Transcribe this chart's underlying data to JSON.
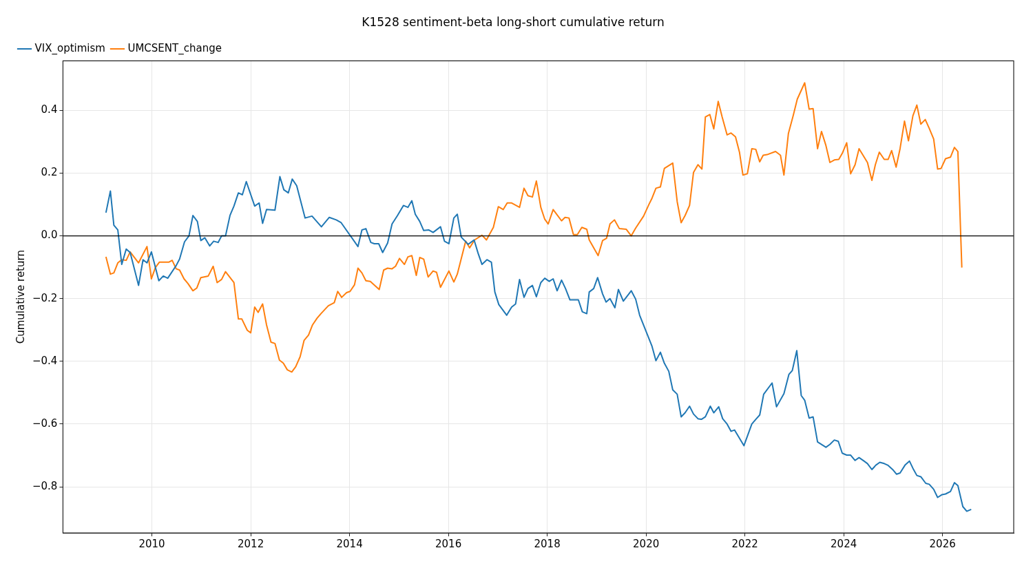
{
  "chart_data": {
    "type": "line",
    "title": "K1528 sentiment-beta long-short cumulative return",
    "ylabel": "Cumulative return",
    "xlim": [
      2008.2,
      2027.44
    ],
    "ylim": [
      -0.947,
      0.558
    ],
    "xticks": [
      2010,
      2012,
      2014,
      2016,
      2018,
      2020,
      2022,
      2024,
      2026
    ],
    "yticks": [
      {
        "value": -0.8,
        "label": "−0.8"
      },
      {
        "value": -0.6,
        "label": "−0.6"
      },
      {
        "value": -0.4,
        "label": "−0.4"
      },
      {
        "value": -0.2,
        "label": "−0.2"
      },
      {
        "value": 0,
        "label": "0.0"
      },
      {
        "value": 0.2,
        "label": "0.2"
      },
      {
        "value": 0.4,
        "label": "0.4"
      }
    ],
    "grid": true,
    "legend": "top left",
    "line_style": "solid",
    "ref_lines": [
      {
        "axis": "y",
        "value": 0,
        "color": "#000000"
      }
    ],
    "series": [
      {
        "name": "VIX_optimism",
        "color": "#1f77b4",
        "x": [
          2009.07,
          2009.16,
          2009.23,
          2009.31,
          2009.39,
          2009.48,
          2009.56,
          2009.73,
          2009.82,
          2009.9,
          2009.99,
          2010.14,
          2010.23,
          2010.32,
          2010.49,
          2010.56,
          2010.66,
          2010.75,
          2010.83,
          2010.92,
          2010.99,
          2011.07,
          2011.17,
          2011.25,
          2011.34,
          2011.41,
          2011.49,
          2011.58,
          2011.66,
          2011.75,
          2011.83,
          2011.91,
          2012.08,
          2012.17,
          2012.24,
          2012.32,
          2012.49,
          2012.59,
          2012.67,
          2012.76,
          2012.84,
          2012.93,
          2013.1,
          2013.24,
          2013.43,
          2013.59,
          2013.73,
          2013.83,
          2014.17,
          2014.25,
          2014.33,
          2014.43,
          2014.5,
          2014.59,
          2014.67,
          2014.77,
          2014.86,
          2014.97,
          2015.09,
          2015.18,
          2015.26,
          2015.33,
          2015.42,
          2015.5,
          2015.6,
          2015.69,
          2015.84,
          2015.92,
          2016.01,
          2016.11,
          2016.18,
          2016.26,
          2016.4,
          2016.52,
          2016.6,
          2016.68,
          2016.78,
          2016.87,
          2016.94,
          2017.02,
          2017.18,
          2017.28,
          2017.36,
          2017.44,
          2017.53,
          2017.61,
          2017.7,
          2017.78,
          2017.87,
          2017.95,
          2018.04,
          2018.12,
          2018.2,
          2018.29,
          2018.37,
          2018.46,
          2018.63,
          2018.71,
          2018.8,
          2018.85,
          2018.94,
          2019.02,
          2019.12,
          2019.19,
          2019.27,
          2019.37,
          2019.44,
          2019.54,
          2019.7,
          2019.79,
          2019.87,
          2020.12,
          2020.2,
          2020.29,
          2020.37,
          2020.46,
          2020.54,
          2020.63,
          2020.71,
          2020.79,
          2020.88,
          2020.96,
          2021.05,
          2021.12,
          2021.2,
          2021.3,
          2021.37,
          2021.47,
          2021.55,
          2021.64,
          2021.72,
          2021.79,
          2021.98,
          2022.14,
          2022.22,
          2022.3,
          2022.38,
          2022.55,
          2022.64,
          2022.79,
          2022.89,
          2022.96,
          2023.05,
          2023.14,
          2023.21,
          2023.3,
          2023.38,
          2023.47,
          2023.64,
          2023.72,
          2023.81,
          2023.89,
          2023.97,
          2024.06,
          2024.14,
          2024.23,
          2024.31,
          2024.41,
          2024.48,
          2024.57,
          2024.65,
          2024.73,
          2024.82,
          2024.89,
          2024.99,
          2025.07,
          2025.14,
          2025.24,
          2025.33,
          2025.4,
          2025.48,
          2025.56,
          2025.66,
          2025.73,
          2025.82,
          2025.9,
          2025.99,
          2026.06,
          2026.16,
          2026.24,
          2026.31,
          2026.41,
          2026.49,
          2026.58
        ],
        "values": [
          0.074,
          0.143,
          0.034,
          0.019,
          -0.091,
          -0.042,
          -0.053,
          -0.158,
          -0.076,
          -0.086,
          -0.051,
          -0.143,
          -0.128,
          -0.135,
          -0.095,
          -0.074,
          -0.019,
          0.0,
          0.065,
          0.046,
          -0.015,
          -0.006,
          -0.032,
          -0.017,
          -0.021,
          0.0,
          0.0,
          0.065,
          0.095,
          0.137,
          0.131,
          0.173,
          0.095,
          0.105,
          0.04,
          0.084,
          0.082,
          0.189,
          0.147,
          0.137,
          0.181,
          0.16,
          0.057,
          0.063,
          0.029,
          0.059,
          0.051,
          0.042,
          -0.034,
          0.019,
          0.023,
          -0.021,
          -0.025,
          -0.025,
          -0.053,
          -0.023,
          0.038,
          0.065,
          0.097,
          0.091,
          0.112,
          0.069,
          0.046,
          0.017,
          0.019,
          0.011,
          0.029,
          -0.017,
          -0.025,
          0.057,
          0.069,
          -0.004,
          -0.027,
          -0.013,
          -0.055,
          -0.091,
          -0.076,
          -0.084,
          -0.179,
          -0.219,
          -0.253,
          -0.227,
          -0.217,
          -0.139,
          -0.196,
          -0.168,
          -0.158,
          -0.194,
          -0.149,
          -0.135,
          -0.145,
          -0.137,
          -0.175,
          -0.141,
          -0.168,
          -0.204,
          -0.204,
          -0.242,
          -0.248,
          -0.179,
          -0.168,
          -0.133,
          -0.185,
          -0.211,
          -0.2,
          -0.229,
          -0.171,
          -0.208,
          -0.175,
          -0.202,
          -0.253,
          -0.352,
          -0.398,
          -0.371,
          -0.406,
          -0.432,
          -0.491,
          -0.505,
          -0.577,
          -0.564,
          -0.543,
          -0.568,
          -0.583,
          -0.585,
          -0.577,
          -0.543,
          -0.564,
          -0.545,
          -0.583,
          -0.6,
          -0.623,
          -0.619,
          -0.669,
          -0.6,
          -0.585,
          -0.571,
          -0.505,
          -0.469,
          -0.545,
          -0.503,
          -0.442,
          -0.429,
          -0.366,
          -0.509,
          -0.524,
          -0.581,
          -0.577,
          -0.657,
          -0.674,
          -0.665,
          -0.651,
          -0.655,
          -0.693,
          -0.699,
          -0.699,
          -0.716,
          -0.707,
          -0.718,
          -0.726,
          -0.745,
          -0.731,
          -0.722,
          -0.726,
          -0.731,
          -0.745,
          -0.76,
          -0.756,
          -0.731,
          -0.718,
          -0.741,
          -0.764,
          -0.768,
          -0.789,
          -0.792,
          -0.808,
          -0.834,
          -0.825,
          -0.823,
          -0.815,
          -0.787,
          -0.796,
          -0.863,
          -0.878,
          -0.872
        ]
      },
      {
        "name": "UMCSENT_change",
        "color": "#ff7f0e",
        "x": [
          2009.07,
          2009.16,
          2009.23,
          2009.31,
          2009.39,
          2009.48,
          2009.56,
          2009.73,
          2009.9,
          2009.99,
          2010.07,
          2010.15,
          2010.34,
          2010.41,
          2010.49,
          2010.56,
          2010.65,
          2010.73,
          2010.83,
          2010.91,
          2010.99,
          2011.14,
          2011.24,
          2011.32,
          2011.41,
          2011.49,
          2011.66,
          2011.75,
          2011.82,
          2011.93,
          2012.0,
          2012.08,
          2012.15,
          2012.24,
          2012.32,
          2012.41,
          2012.49,
          2012.58,
          2012.66,
          2012.74,
          2012.83,
          2012.91,
          2013.0,
          2013.08,
          2013.17,
          2013.25,
          2013.34,
          2013.42,
          2013.57,
          2013.69,
          2013.76,
          2013.84,
          2013.94,
          2014.01,
          2014.1,
          2014.17,
          2014.25,
          2014.33,
          2014.42,
          2014.6,
          2014.69,
          2014.77,
          2014.86,
          2014.93,
          2015.01,
          2015.11,
          2015.18,
          2015.26,
          2015.35,
          2015.42,
          2015.5,
          2015.59,
          2015.69,
          2015.76,
          2015.84,
          2016.01,
          2016.11,
          2016.18,
          2016.35,
          2016.43,
          2016.53,
          2016.68,
          2016.77,
          2016.91,
          2017.01,
          2017.11,
          2017.19,
          2017.28,
          2017.44,
          2017.53,
          2017.61,
          2017.7,
          2017.78,
          2017.87,
          2017.95,
          2018.02,
          2018.12,
          2018.19,
          2018.29,
          2018.36,
          2018.44,
          2018.53,
          2018.61,
          2018.7,
          2018.8,
          2018.85,
          2019.03,
          2019.12,
          2019.2,
          2019.27,
          2019.36,
          2019.46,
          2019.6,
          2019.7,
          2019.79,
          2019.95,
          2020.06,
          2020.12,
          2020.2,
          2020.29,
          2020.37,
          2020.54,
          2020.63,
          2020.71,
          2020.79,
          2020.88,
          2020.96,
          2021.05,
          2021.13,
          2021.2,
          2021.29,
          2021.37,
          2021.46,
          2021.54,
          2021.64,
          2021.72,
          2021.81,
          2021.89,
          2021.96,
          2022.05,
          2022.14,
          2022.22,
          2022.3,
          2022.37,
          2022.45,
          2022.62,
          2022.72,
          2022.79,
          2022.88,
          2022.98,
          2023.06,
          2023.21,
          2023.3,
          2023.38,
          2023.47,
          2023.55,
          2023.64,
          2023.72,
          2023.81,
          2023.9,
          2023.97,
          2024.06,
          2024.14,
          2024.23,
          2024.31,
          2024.48,
          2024.57,
          2024.64,
          2024.72,
          2024.82,
          2024.9,
          2024.97,
          2025.06,
          2025.14,
          2025.23,
          2025.31,
          2025.4,
          2025.48,
          2025.56,
          2025.65,
          2025.73,
          2025.82,
          2025.9,
          2025.97,
          2026.06,
          2026.16,
          2026.24,
          2026.31,
          2026.39
        ],
        "values": [
          -0.067,
          -0.122,
          -0.118,
          -0.086,
          -0.076,
          -0.078,
          -0.051,
          -0.086,
          -0.034,
          -0.137,
          -0.101,
          -0.084,
          -0.084,
          -0.078,
          -0.105,
          -0.109,
          -0.137,
          -0.152,
          -0.175,
          -0.166,
          -0.133,
          -0.128,
          -0.097,
          -0.149,
          -0.139,
          -0.114,
          -0.149,
          -0.265,
          -0.265,
          -0.301,
          -0.309,
          -0.227,
          -0.244,
          -0.217,
          -0.284,
          -0.339,
          -0.343,
          -0.396,
          -0.406,
          -0.427,
          -0.434,
          -0.417,
          -0.385,
          -0.333,
          -0.316,
          -0.284,
          -0.263,
          -0.248,
          -0.223,
          -0.213,
          -0.177,
          -0.196,
          -0.181,
          -0.177,
          -0.156,
          -0.103,
          -0.118,
          -0.143,
          -0.145,
          -0.171,
          -0.109,
          -0.103,
          -0.105,
          -0.097,
          -0.072,
          -0.091,
          -0.067,
          -0.063,
          -0.126,
          -0.069,
          -0.074,
          -0.131,
          -0.112,
          -0.116,
          -0.164,
          -0.112,
          -0.147,
          -0.122,
          -0.017,
          -0.038,
          -0.013,
          0.002,
          -0.013,
          0.027,
          0.093,
          0.084,
          0.105,
          0.105,
          0.091,
          0.152,
          0.128,
          0.124,
          0.175,
          0.091,
          0.053,
          0.038,
          0.084,
          0.069,
          0.048,
          0.059,
          0.057,
          0.004,
          0.004,
          0.027,
          0.021,
          -0.013,
          -0.063,
          -0.015,
          -0.008,
          0.038,
          0.051,
          0.023,
          0.021,
          0.0,
          0.025,
          0.063,
          0.101,
          0.12,
          0.152,
          0.156,
          0.215,
          0.232,
          0.109,
          0.042,
          0.065,
          0.097,
          0.202,
          0.227,
          0.213,
          0.379,
          0.387,
          0.341,
          0.429,
          0.379,
          0.322,
          0.328,
          0.316,
          0.267,
          0.194,
          0.198,
          0.278,
          0.276,
          0.236,
          0.257,
          0.259,
          0.269,
          0.257,
          0.194,
          0.326,
          0.385,
          0.436,
          0.488,
          0.404,
          0.406,
          0.278,
          0.333,
          0.288,
          0.234,
          0.242,
          0.244,
          0.263,
          0.297,
          0.198,
          0.227,
          0.278,
          0.234,
          0.177,
          0.227,
          0.267,
          0.244,
          0.244,
          0.272,
          0.219,
          0.278,
          0.366,
          0.303,
          0.383,
          0.417,
          0.356,
          0.371,
          0.343,
          0.309,
          0.213,
          0.215,
          0.246,
          0.251,
          0.282,
          0.269,
          -0.101
        ]
      }
    ]
  }
}
